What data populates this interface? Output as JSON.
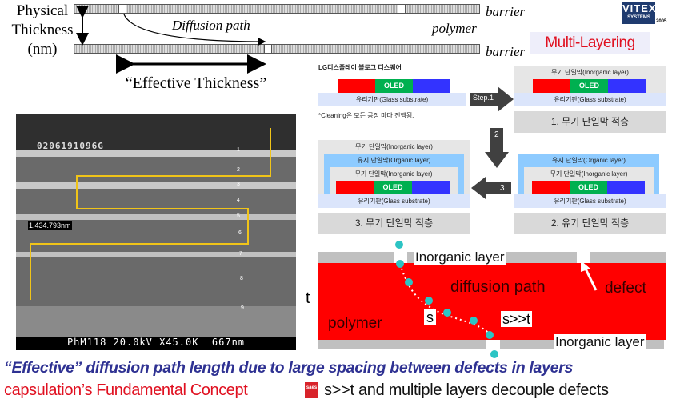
{
  "thickness_diagram": {
    "axis_label": [
      "Physical",
      "Thickness",
      "(nm)"
    ],
    "barrier_top": "barrier",
    "barrier_bottom": "barrier",
    "polymer": "polymer",
    "diffusion_path": "Diffusion path",
    "effective_thickness": "“Effective Thickness”"
  },
  "logo": {
    "name": "VITEX",
    "sub": "SYSTEMS",
    "year": "2005"
  },
  "multi_layering": "Multi-Layering",
  "process": {
    "source": "LG디스플레이 블로그 디스퀘어",
    "oled": "OLED",
    "glass": "유리기판(Glass substrate)",
    "inorganic": "무기 단일막(Inorganic layer)",
    "organic": "유지 단일막(Organic layer)",
    "note": "*Cleaning은 모든 공정 마다 진행됨.",
    "step1": "Step.1",
    "step2": "2",
    "step3": "3",
    "cap1": "1. 무기 단일막 적층",
    "cap2": "2. 유기 단일막 적층",
    "cap3": "3. 무기 단일막 적층"
  },
  "sem": {
    "id": "0206191096G",
    "measure": "1,434.793nm",
    "info": "PhM118 20.0kV X45.0K  667nm",
    "layers": [
      "1",
      "2",
      "3",
      "4",
      "5",
      "6",
      "7",
      "8",
      "9"
    ]
  },
  "defect_diagram": {
    "inorganic_top": "Inorganic layer",
    "inorganic_bottom": "Inorganic layer",
    "diffusion": "diffusion path",
    "defect": "defect",
    "polymer": "polymer",
    "t": "t",
    "s": "s",
    "s_t": "s>>t"
  },
  "footer": {
    "line1": "“Effective” diffusion path length due to large spacing between defects in layers",
    "line2_red": "capsulation’s Fundamental Concept",
    "saes": "saes",
    "line2_black": "s>>t and multiple layers decouple defects"
  },
  "colors": {
    "red": "#ff0000",
    "blue_text": "#2e3192",
    "path": "#f0c419",
    "dot": "#2cc4c4"
  }
}
